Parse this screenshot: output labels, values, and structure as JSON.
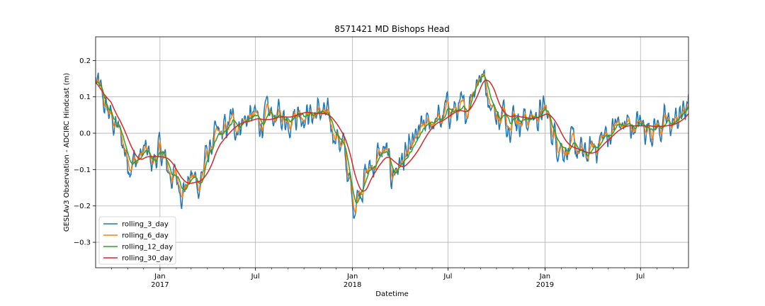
{
  "chart_data": {
    "type": "line",
    "title": "8571421 MD Bishops Head",
    "xlabel": "Datetime",
    "ylabel": "GESLAv3 Observation - ADCIRC Hindcast (m)",
    "xlim": [
      "2016-09-01",
      "2019-09-30"
    ],
    "ylim": [
      -0.37,
      0.265
    ],
    "grid": true,
    "legend_position": "lower-left",
    "y_ticks": [
      -0.3,
      -0.2,
      -0.1,
      0.0,
      0.1,
      0.2
    ],
    "y_tick_labels": [
      "−0.3",
      "−0.2",
      "−0.1",
      "0.0",
      "0.1",
      "0.2"
    ],
    "x_major_ticks": [
      {
        "date": "2017-01-01",
        "label": "Jan",
        "sublabel": "2017"
      },
      {
        "date": "2017-07-01",
        "label": "Jul",
        "sublabel": ""
      },
      {
        "date": "2018-01-01",
        "label": "Jan",
        "sublabel": "2018"
      },
      {
        "date": "2018-07-01",
        "label": "Jul",
        "sublabel": ""
      },
      {
        "date": "2019-01-01",
        "label": "Jan",
        "sublabel": "2019"
      },
      {
        "date": "2019-07-01",
        "label": "Jul",
        "sublabel": ""
      }
    ],
    "anchor_dates": [
      "2016-09-01",
      "2016-09-15",
      "2016-10-01",
      "2016-10-15",
      "2016-11-01",
      "2016-11-15",
      "2016-12-01",
      "2016-12-15",
      "2017-01-01",
      "2017-01-15",
      "2017-02-01",
      "2017-02-15",
      "2017-03-01",
      "2017-03-15",
      "2017-04-01",
      "2017-04-15",
      "2017-05-01",
      "2017-05-15",
      "2017-06-01",
      "2017-06-15",
      "2017-07-01",
      "2017-07-15",
      "2017-08-01",
      "2017-08-15",
      "2017-09-01",
      "2017-09-15",
      "2017-10-01",
      "2017-10-15",
      "2017-11-01",
      "2017-11-15",
      "2017-12-01",
      "2017-12-15",
      "2018-01-01",
      "2018-01-15",
      "2018-02-01",
      "2018-02-15",
      "2018-03-01",
      "2018-03-15",
      "2018-04-01",
      "2018-04-15",
      "2018-05-01",
      "2018-05-15",
      "2018-06-01",
      "2018-06-15",
      "2018-07-01",
      "2018-07-15",
      "2018-08-01",
      "2018-08-15",
      "2018-09-01",
      "2018-09-15",
      "2018-10-01",
      "2018-10-15",
      "2018-11-01",
      "2018-11-15",
      "2018-12-01",
      "2018-12-15",
      "2019-01-01",
      "2019-01-15",
      "2019-02-01",
      "2019-02-15",
      "2019-03-01",
      "2019-03-15",
      "2019-04-01",
      "2019-04-15",
      "2019-05-01",
      "2019-05-15",
      "2019-06-01",
      "2019-06-15",
      "2019-07-01",
      "2019-07-15",
      "2019-08-01",
      "2019-08-15",
      "2019-09-01",
      "2019-09-15",
      "2019-09-30"
    ],
    "anchor_values": [
      0.14,
      0.08,
      0.04,
      0.0,
      -0.07,
      -0.08,
      -0.05,
      -0.08,
      -0.05,
      -0.1,
      -0.13,
      -0.15,
      -0.12,
      -0.14,
      -0.05,
      -0.02,
      0.0,
      0.03,
      0.03,
      0.04,
      0.04,
      0.03,
      0.05,
      0.04,
      0.05,
      0.06,
      0.06,
      0.05,
      0.06,
      0.03,
      0.0,
      -0.05,
      -0.2,
      -0.14,
      -0.1,
      -0.07,
      -0.05,
      -0.11,
      -0.08,
      -0.07,
      -0.02,
      0.01,
      0.04,
      0.03,
      0.07,
      0.06,
      0.05,
      0.13,
      0.17,
      0.11,
      0.04,
      0.05,
      0.05,
      0.04,
      0.04,
      0.05,
      0.06,
      0.0,
      -0.03,
      -0.05,
      -0.04,
      -0.07,
      -0.04,
      -0.02,
      0.0,
      0.02,
      0.02,
      0.02,
      0.02,
      0.02,
      0.02,
      0.02,
      0.03,
      0.05,
      0.08
    ],
    "series": [
      {
        "name": "rolling_3_day",
        "color": "#1f77b4",
        "window": 3,
        "noise": 0.075
      },
      {
        "name": "rolling_6_day",
        "color": "#ff7f0e",
        "window": 6,
        "noise": 0.055
      },
      {
        "name": "rolling_12_day",
        "color": "#2ca02c",
        "window": 12,
        "noise": 0.035
      },
      {
        "name": "rolling_30_day",
        "color": "#d62728",
        "window": 30,
        "noise": 0.006
      }
    ]
  }
}
